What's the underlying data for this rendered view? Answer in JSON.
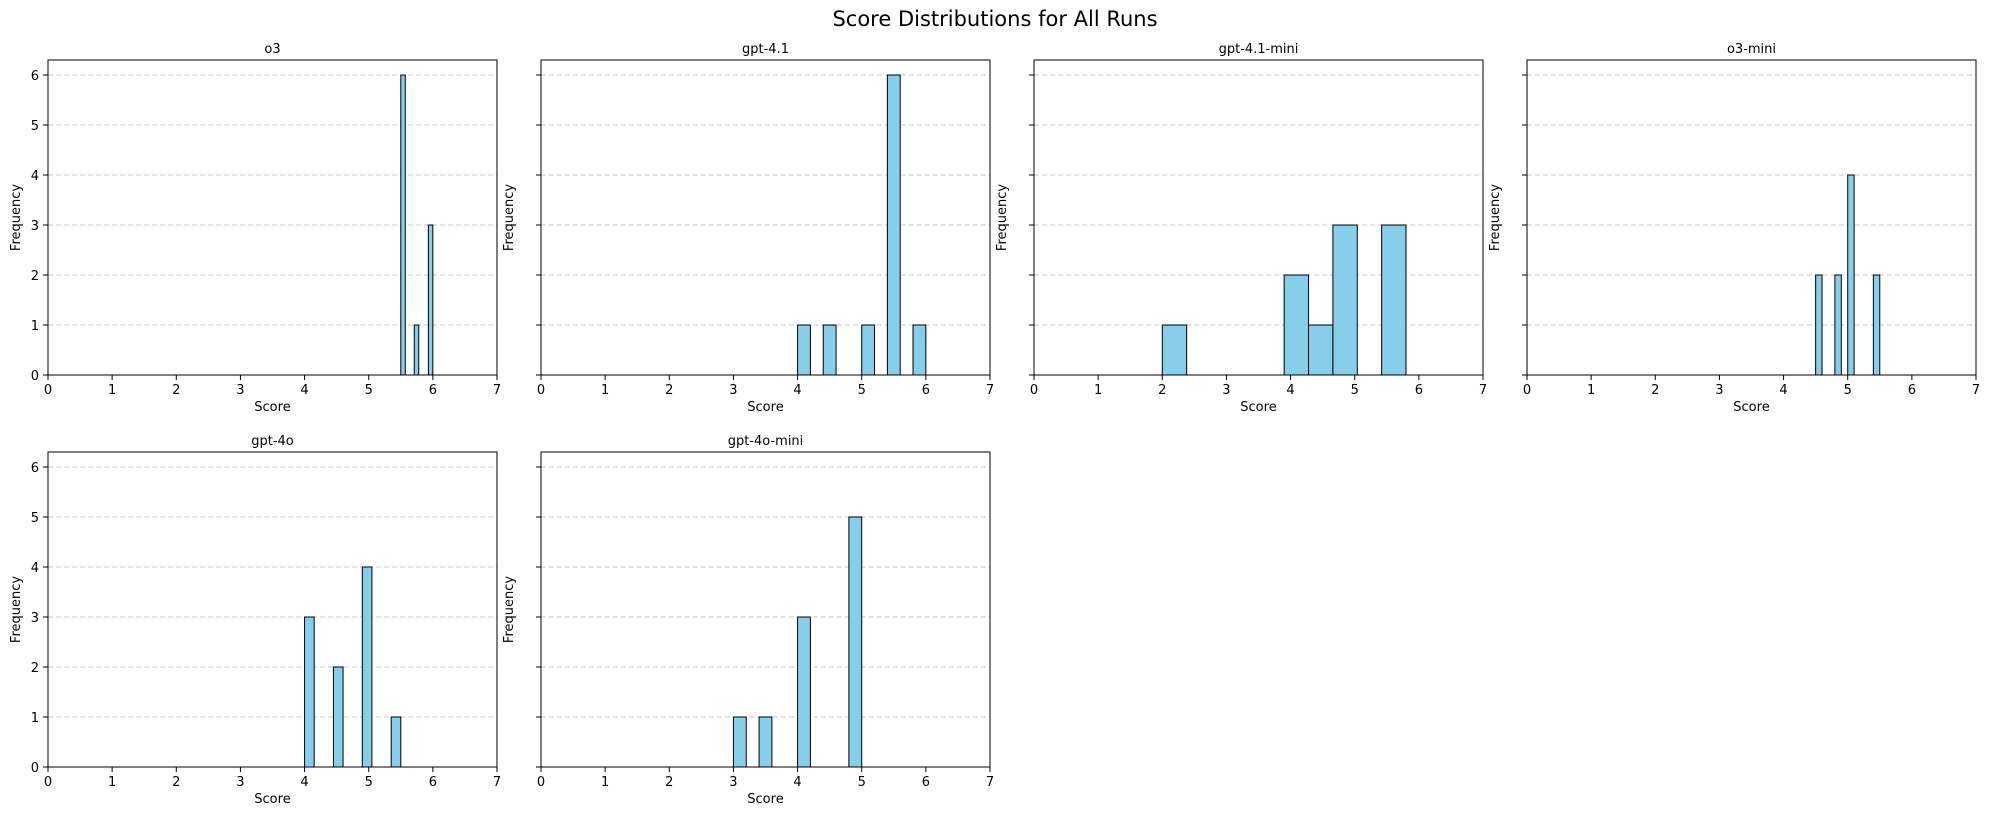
{
  "figure": {
    "title": "Score Distributions for All Runs"
  },
  "style": {
    "bar_fill": "#87CEEB",
    "bar_edge": "#000000",
    "grid_color": "#b0b0b0"
  },
  "chart_data": [
    {
      "type": "bar",
      "title": "o3",
      "xlabel": "Score",
      "ylabel": "Frequency",
      "xlim": [
        0,
        7
      ],
      "ylim": [
        0,
        6.3
      ],
      "xticks": [
        0,
        1,
        2,
        3,
        4,
        5,
        6,
        7
      ],
      "yticks": [
        0,
        1,
        2,
        3,
        4,
        5,
        6
      ],
      "grid": "y, dashed",
      "bars": [
        {
          "x0": 5.5,
          "x1": 5.57,
          "value": 6
        },
        {
          "x0": 5.71,
          "x1": 5.78,
          "value": 1
        },
        {
          "x0": 5.93,
          "x1": 6.0,
          "value": 3
        }
      ]
    },
    {
      "type": "bar",
      "title": "gpt-4.1",
      "xlabel": "Score",
      "ylabel": "Frequency",
      "xlim": [
        0,
        7
      ],
      "ylim": [
        0,
        6.3
      ],
      "xticks": [
        0,
        1,
        2,
        3,
        4,
        5,
        6,
        7
      ],
      "yticks": [
        0,
        1,
        2,
        3,
        4,
        5,
        6
      ],
      "grid": "y, dashed",
      "bars": [
        {
          "x0": 4.0,
          "x1": 4.2,
          "value": 1
        },
        {
          "x0": 4.4,
          "x1": 4.6,
          "value": 1
        },
        {
          "x0": 5.0,
          "x1": 5.2,
          "value": 1
        },
        {
          "x0": 5.4,
          "x1": 5.6,
          "value": 6
        },
        {
          "x0": 5.8,
          "x1": 6.0,
          "value": 1
        }
      ]
    },
    {
      "type": "bar",
      "title": "gpt-4.1-mini",
      "xlabel": "Score",
      "ylabel": "Frequency",
      "xlim": [
        0,
        7
      ],
      "ylim": [
        0,
        6.3
      ],
      "xticks": [
        0,
        1,
        2,
        3,
        4,
        5,
        6,
        7
      ],
      "yticks": [
        0,
        1,
        2,
        3,
        4,
        5,
        6
      ],
      "grid": "y, dashed",
      "bars": [
        {
          "x0": 2.0,
          "x1": 2.38,
          "value": 1
        },
        {
          "x0": 3.9,
          "x1": 4.28,
          "value": 2
        },
        {
          "x0": 4.28,
          "x1": 4.66,
          "value": 1
        },
        {
          "x0": 4.66,
          "x1": 5.04,
          "value": 3
        },
        {
          "x0": 5.42,
          "x1": 5.8,
          "value": 3
        }
      ]
    },
    {
      "type": "bar",
      "title": "o3-mini",
      "xlabel": "Score",
      "ylabel": "Frequency",
      "xlim": [
        0,
        7
      ],
      "ylim": [
        0,
        6.3
      ],
      "xticks": [
        0,
        1,
        2,
        3,
        4,
        5,
        6,
        7
      ],
      "yticks": [
        0,
        1,
        2,
        3,
        4,
        5,
        6
      ],
      "grid": "y, dashed",
      "bars": [
        {
          "x0": 4.5,
          "x1": 4.6,
          "value": 2
        },
        {
          "x0": 4.8,
          "x1": 4.9,
          "value": 2
        },
        {
          "x0": 5.0,
          "x1": 5.1,
          "value": 4
        },
        {
          "x0": 5.4,
          "x1": 5.5,
          "value": 2
        }
      ]
    },
    {
      "type": "bar",
      "title": "gpt-4o",
      "xlabel": "Score",
      "ylabel": "Frequency",
      "xlim": [
        0,
        7
      ],
      "ylim": [
        0,
        6.3
      ],
      "xticks": [
        0,
        1,
        2,
        3,
        4,
        5,
        6,
        7
      ],
      "yticks": [
        0,
        1,
        2,
        3,
        4,
        5,
        6
      ],
      "grid": "y, dashed",
      "bars": [
        {
          "x0": 4.0,
          "x1": 4.15,
          "value": 3
        },
        {
          "x0": 4.45,
          "x1": 4.6,
          "value": 2
        },
        {
          "x0": 4.9,
          "x1": 5.05,
          "value": 4
        },
        {
          "x0": 5.35,
          "x1": 5.5,
          "value": 1
        }
      ]
    },
    {
      "type": "bar",
      "title": "gpt-4o-mini",
      "xlabel": "Score",
      "ylabel": "Frequency",
      "xlim": [
        0,
        7
      ],
      "ylim": [
        0,
        6.3
      ],
      "xticks": [
        0,
        1,
        2,
        3,
        4,
        5,
        6,
        7
      ],
      "yticks": [
        0,
        1,
        2,
        3,
        4,
        5,
        6
      ],
      "grid": "y, dashed",
      "bars": [
        {
          "x0": 3.0,
          "x1": 3.2,
          "value": 1
        },
        {
          "x0": 3.4,
          "x1": 3.6,
          "value": 1
        },
        {
          "x0": 4.0,
          "x1": 4.2,
          "value": 3
        },
        {
          "x0": 4.8,
          "x1": 5.0,
          "value": 5
        }
      ]
    }
  ]
}
